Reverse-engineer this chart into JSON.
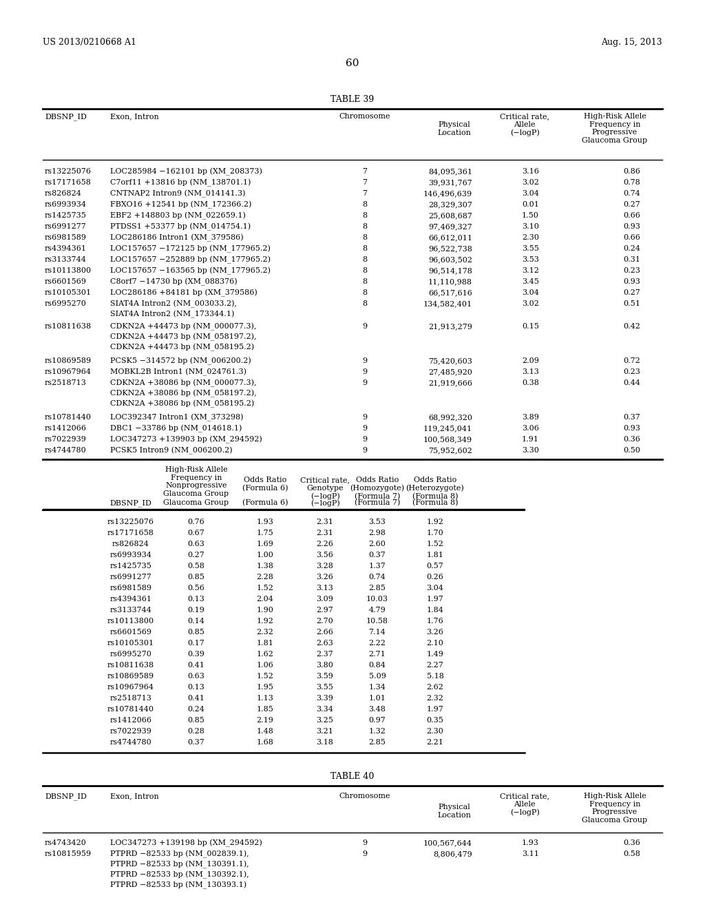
{
  "header_left": "US 2013/0210668 A1",
  "header_right": "Aug. 15, 2013",
  "page_number": "60",
  "table39_title": "TABLE 39",
  "table40_title": "TABLE 40",
  "table39_part1_rows": [
    [
      "rs13225076",
      "LOC285984 −162101 bp (XM_208373)",
      "7",
      "84,095,361",
      "3.16",
      "0.86"
    ],
    [
      "rs17171658",
      "C7orf11 +13816 bp (NM_138701.1)",
      "7",
      "39,931,767",
      "3.02",
      "0.78"
    ],
    [
      "rs826824",
      "CNTNAP2 Intron9 (NM_014141.3)",
      "7",
      "146,496,639",
      "3.04",
      "0.74"
    ],
    [
      "rs6993934",
      "FBXO16 +12541 bp (NM_172366.2)",
      "8",
      "28,329,307",
      "0.01",
      "0.27"
    ],
    [
      "rs1425735",
      "EBF2 +148803 bp (NM_022659.1)",
      "8",
      "25,608,687",
      "1.50",
      "0.66"
    ],
    [
      "rs6991277",
      "PTDSS1 +53377 bp (NM_014754.1)",
      "8",
      "97,469,327",
      "3.10",
      "0.93"
    ],
    [
      "rs6981589",
      "LOC286186 Intron1 (XM_379586)",
      "8",
      "66,612,011",
      "2.30",
      "0.66"
    ],
    [
      "rs4394361",
      "LOC157657 −172125 bp (NM_177965.2)",
      "8",
      "96,522,738",
      "3.55",
      "0.24"
    ],
    [
      "rs3133744",
      "LOC157657 −252889 bp (NM_177965.2)",
      "8",
      "96,603,502",
      "3.53",
      "0.31"
    ],
    [
      "rs10113800",
      "LOC157657 −163565 bp (NM_177965.2)",
      "8",
      "96,514,178",
      "3.12",
      "0.23"
    ],
    [
      "rs6601569",
      "C8orf7 −14730 bp (XM_088376)",
      "8",
      "11,110,988",
      "3.45",
      "0.93"
    ],
    [
      "rs10105301",
      "LOC286186 +84181 bp (XM_379586)",
      "8",
      "66,517,616",
      "3.04",
      "0.27"
    ],
    [
      "rs6995270",
      "SIAT4A Intron2 (NM_003033.2),\nSIAT4A Intron2 (NM_173344.1)",
      "8",
      "134,582,401",
      "3.02",
      "0.51"
    ],
    [
      "rs10811638",
      "CDKN2A +44473 bp (NM_000077.3),\nCDKN2A +44473 bp (NM_058197.2),\nCDKN2A +44473 bp (NM_058195.2)",
      "9",
      "21,913,279",
      "0.15",
      "0.42"
    ],
    [
      "rs10869589",
      "PCSK5 −314572 bp (NM_006200.2)",
      "9",
      "75,420,603",
      "2.09",
      "0.72"
    ],
    [
      "rs10967964",
      "MOBKL2B Intron1 (NM_024761.3)",
      "9",
      "27,485,920",
      "3.13",
      "0.23"
    ],
    [
      "rs2518713",
      "CDKN2A +38086 bp (NM_000077.3),\nCDKN2A +38086 bp (NM_058197.2),\nCDKN2A +38086 bp (NM_058195.2)",
      "9",
      "21,919,666",
      "0.38",
      "0.44"
    ],
    [
      "rs10781440",
      "LOC392347 Intron1 (XM_373298)",
      "9",
      "68,992,320",
      "3.89",
      "0.37"
    ],
    [
      "rs1412066",
      "DBC1 −33786 bp (NM_014618.1)",
      "9",
      "119,245,041",
      "3.06",
      "0.93"
    ],
    [
      "rs7022939",
      "LOC347273 +139903 bp (XM_294592)",
      "9",
      "100,568,349",
      "1.91",
      "0.36"
    ],
    [
      "rs4744780",
      "PCSK5 Intron9 (NM_006200.2)",
      "9",
      "75,952,602",
      "3.30",
      "0.50"
    ]
  ],
  "table39_part2_rows": [
    [
      "rs13225076",
      "0.76",
      "1.93",
      "2.31",
      "3.53",
      "1.92"
    ],
    [
      "rs17171658",
      "0.67",
      "1.75",
      "2.31",
      "2.98",
      "1.70"
    ],
    [
      "rs826824",
      "0.63",
      "1.69",
      "2.26",
      "2.60",
      "1.52"
    ],
    [
      "rs6993934",
      "0.27",
      "1.00",
      "3.56",
      "0.37",
      "1.81"
    ],
    [
      "rs1425735",
      "0.58",
      "1.38",
      "3.28",
      "1.37",
      "0.57"
    ],
    [
      "rs6991277",
      "0.85",
      "2.28",
      "3.26",
      "0.74",
      "0.26"
    ],
    [
      "rs6981589",
      "0.56",
      "1.52",
      "3.13",
      "2.85",
      "3.04"
    ],
    [
      "rs4394361",
      "0.13",
      "2.04",
      "3.09",
      "10.03",
      "1.97"
    ],
    [
      "rs3133744",
      "0.19",
      "1.90",
      "2.97",
      "4.79",
      "1.84"
    ],
    [
      "rs10113800",
      "0.14",
      "1.92",
      "2.70",
      "10.58",
      "1.76"
    ],
    [
      "rs6601569",
      "0.85",
      "2.32",
      "2.66",
      "7.14",
      "3.26"
    ],
    [
      "rs10105301",
      "0.17",
      "1.81",
      "2.63",
      "2.22",
      "2.10"
    ],
    [
      "rs6995270",
      "0.39",
      "1.62",
      "2.37",
      "2.71",
      "1.49"
    ],
    [
      "rs10811638",
      "0.41",
      "1.06",
      "3.80",
      "0.84",
      "2.27"
    ],
    [
      "rs10869589",
      "0.63",
      "1.52",
      "3.59",
      "5.09",
      "5.18"
    ],
    [
      "rs10967964",
      "0.13",
      "1.95",
      "3.55",
      "1.34",
      "2.62"
    ],
    [
      "rs2518713",
      "0.41",
      "1.13",
      "3.39",
      "1.01",
      "2.32"
    ],
    [
      "rs10781440",
      "0.24",
      "1.85",
      "3.34",
      "3.48",
      "1.97"
    ],
    [
      "rs1412066",
      "0.85",
      "2.19",
      "3.25",
      "0.97",
      "0.35"
    ],
    [
      "rs7022939",
      "0.28",
      "1.48",
      "3.21",
      "1.32",
      "2.30"
    ],
    [
      "rs4744780",
      "0.37",
      "1.68",
      "3.18",
      "2.85",
      "2.21"
    ]
  ],
  "table40_rows": [
    [
      "rs4743420",
      "LOC347273 +139198 bp (XM_294592)",
      "9",
      "100,567,644",
      "1.93",
      "0.36"
    ],
    [
      "rs10815959",
      "PTPRD −82533 bp (NM_002839.1),\nPTPRD −82533 bp (NM_130391.1),\nPTPRD −82533 bp (NM_130392.1),\nPTPRD −82533 bp (NM_130393.1)",
      "9",
      "8,806,479",
      "3.11",
      "0.58"
    ]
  ]
}
